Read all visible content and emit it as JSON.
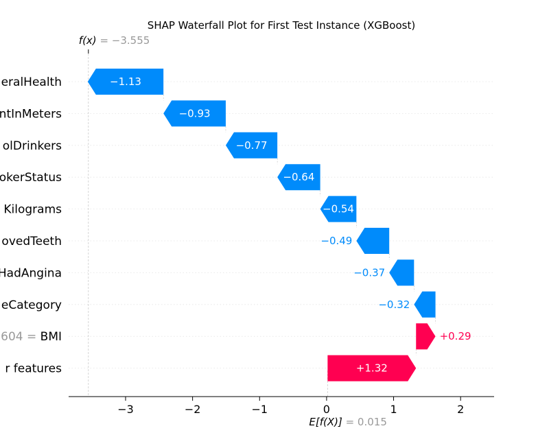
{
  "chart_data": {
    "type": "waterfall",
    "title": "SHAP Waterfall Plot for First Test Instance (XGBoost)",
    "fx_label": "f(x)",
    "fx_value_text": " = −3.555",
    "fx": -3.555,
    "ex_label": "E[f(X)]",
    "ex_value_text": " = 0.015",
    "base_value": 0.015,
    "xlim": [
      -3.85,
      2.5
    ],
    "x_ticks": [
      -3,
      -2,
      -1,
      0,
      1,
      2
    ],
    "x_tick_labels": [
      "−3",
      "−2",
      "−1",
      "0",
      "1",
      "2"
    ],
    "features": [
      {
        "value_text": "",
        "name": "eralHealth",
        "shap": -1.13,
        "label": "−1.13",
        "label_inside": true
      },
      {
        "value_text": "",
        "name": "ntInMeters",
        "shap": -0.93,
        "label": "−0.93",
        "label_inside": true
      },
      {
        "value_text": "",
        "name": "olDrinkers",
        "shap": -0.77,
        "label": "−0.77",
        "label_inside": true
      },
      {
        "value_text": "",
        "name": "okerStatus",
        "shap": -0.64,
        "label": "−0.64",
        "label_inside": true
      },
      {
        "value_text": "",
        "name": "Kilograms",
        "shap": -0.54,
        "label": "−0.54",
        "label_inside": true
      },
      {
        "value_text": "",
        "name": "ovedTeeth",
        "shap": -0.49,
        "label": "−0.49",
        "label_inside": false
      },
      {
        "value_text": "",
        "name": "HadAngina",
        "shap": -0.37,
        "label": "−0.37",
        "label_inside": false
      },
      {
        "value_text": "",
        "name": "eCategory",
        "shap": -0.32,
        "label": "−0.32",
        "label_inside": false
      },
      {
        "value_text": "604 = ",
        "name": "BMI",
        "shap": 0.29,
        "label": "+0.29",
        "label_inside": false
      },
      {
        "value_text": "",
        "name": "r features",
        "shap": 1.32,
        "label": "+1.32",
        "label_inside": true
      }
    ],
    "colors": {
      "negative": "#008bfb",
      "positive": "#ff0051",
      "muted_text": "#999999",
      "grid": "#cccccc"
    }
  }
}
